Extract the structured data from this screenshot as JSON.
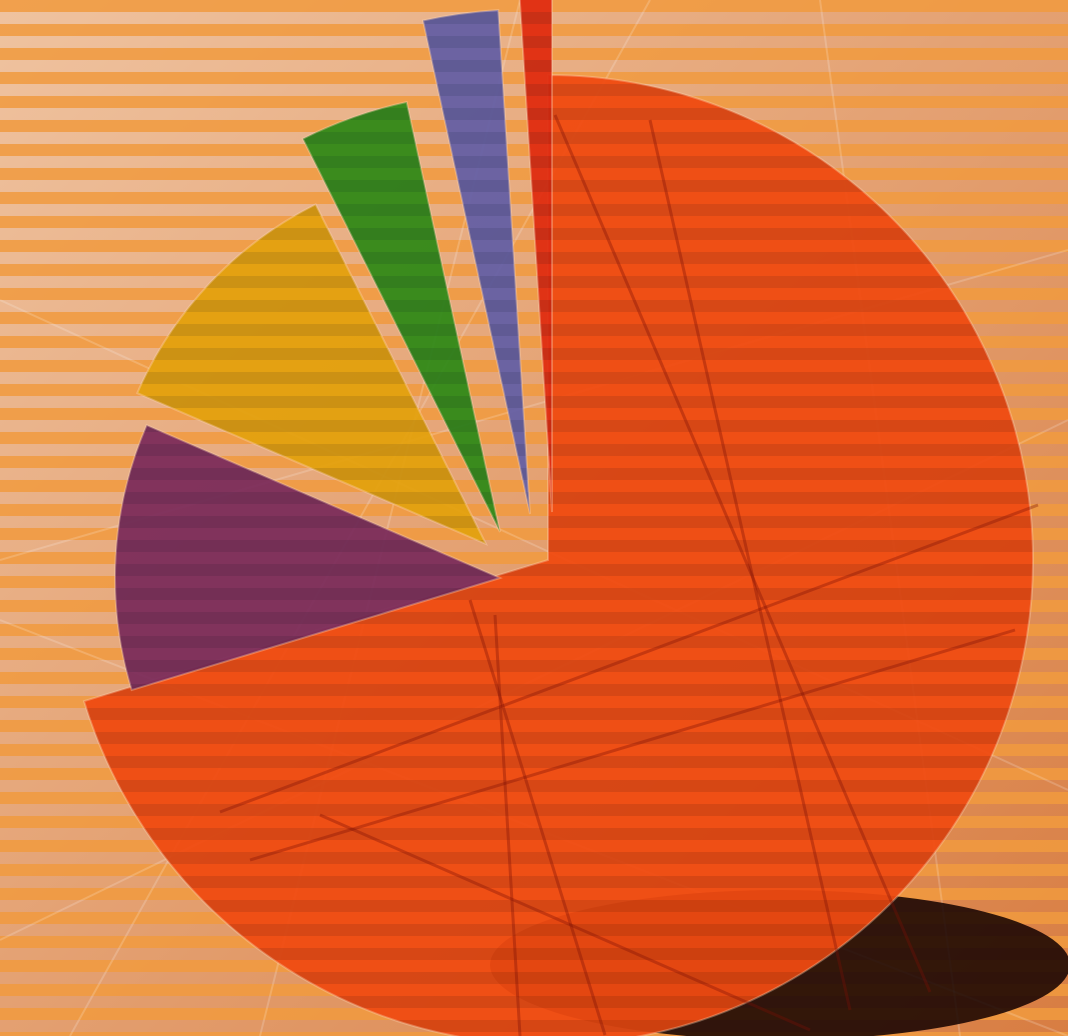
{
  "chart_data": {
    "type": "pie",
    "style": "3d-exploded",
    "title": "",
    "labels": [],
    "slices": [
      {
        "value": 70.3,
        "color": "#ef4a12"
      },
      {
        "value": 11.2,
        "color": "#7a2d5d"
      },
      {
        "value": 11.1,
        "color": "#e2a10f"
      },
      {
        "value": 4.0,
        "color": "#2f8a1b"
      },
      {
        "value": 2.4,
        "color": "#6360a8"
      },
      {
        "value": 1.0,
        "color": "#df2d12"
      }
    ],
    "legend": "none",
    "background": {
      "base_color": "#e9b07a",
      "stripe_color": "#f19a3e",
      "stripes": "horizontal"
    }
  }
}
